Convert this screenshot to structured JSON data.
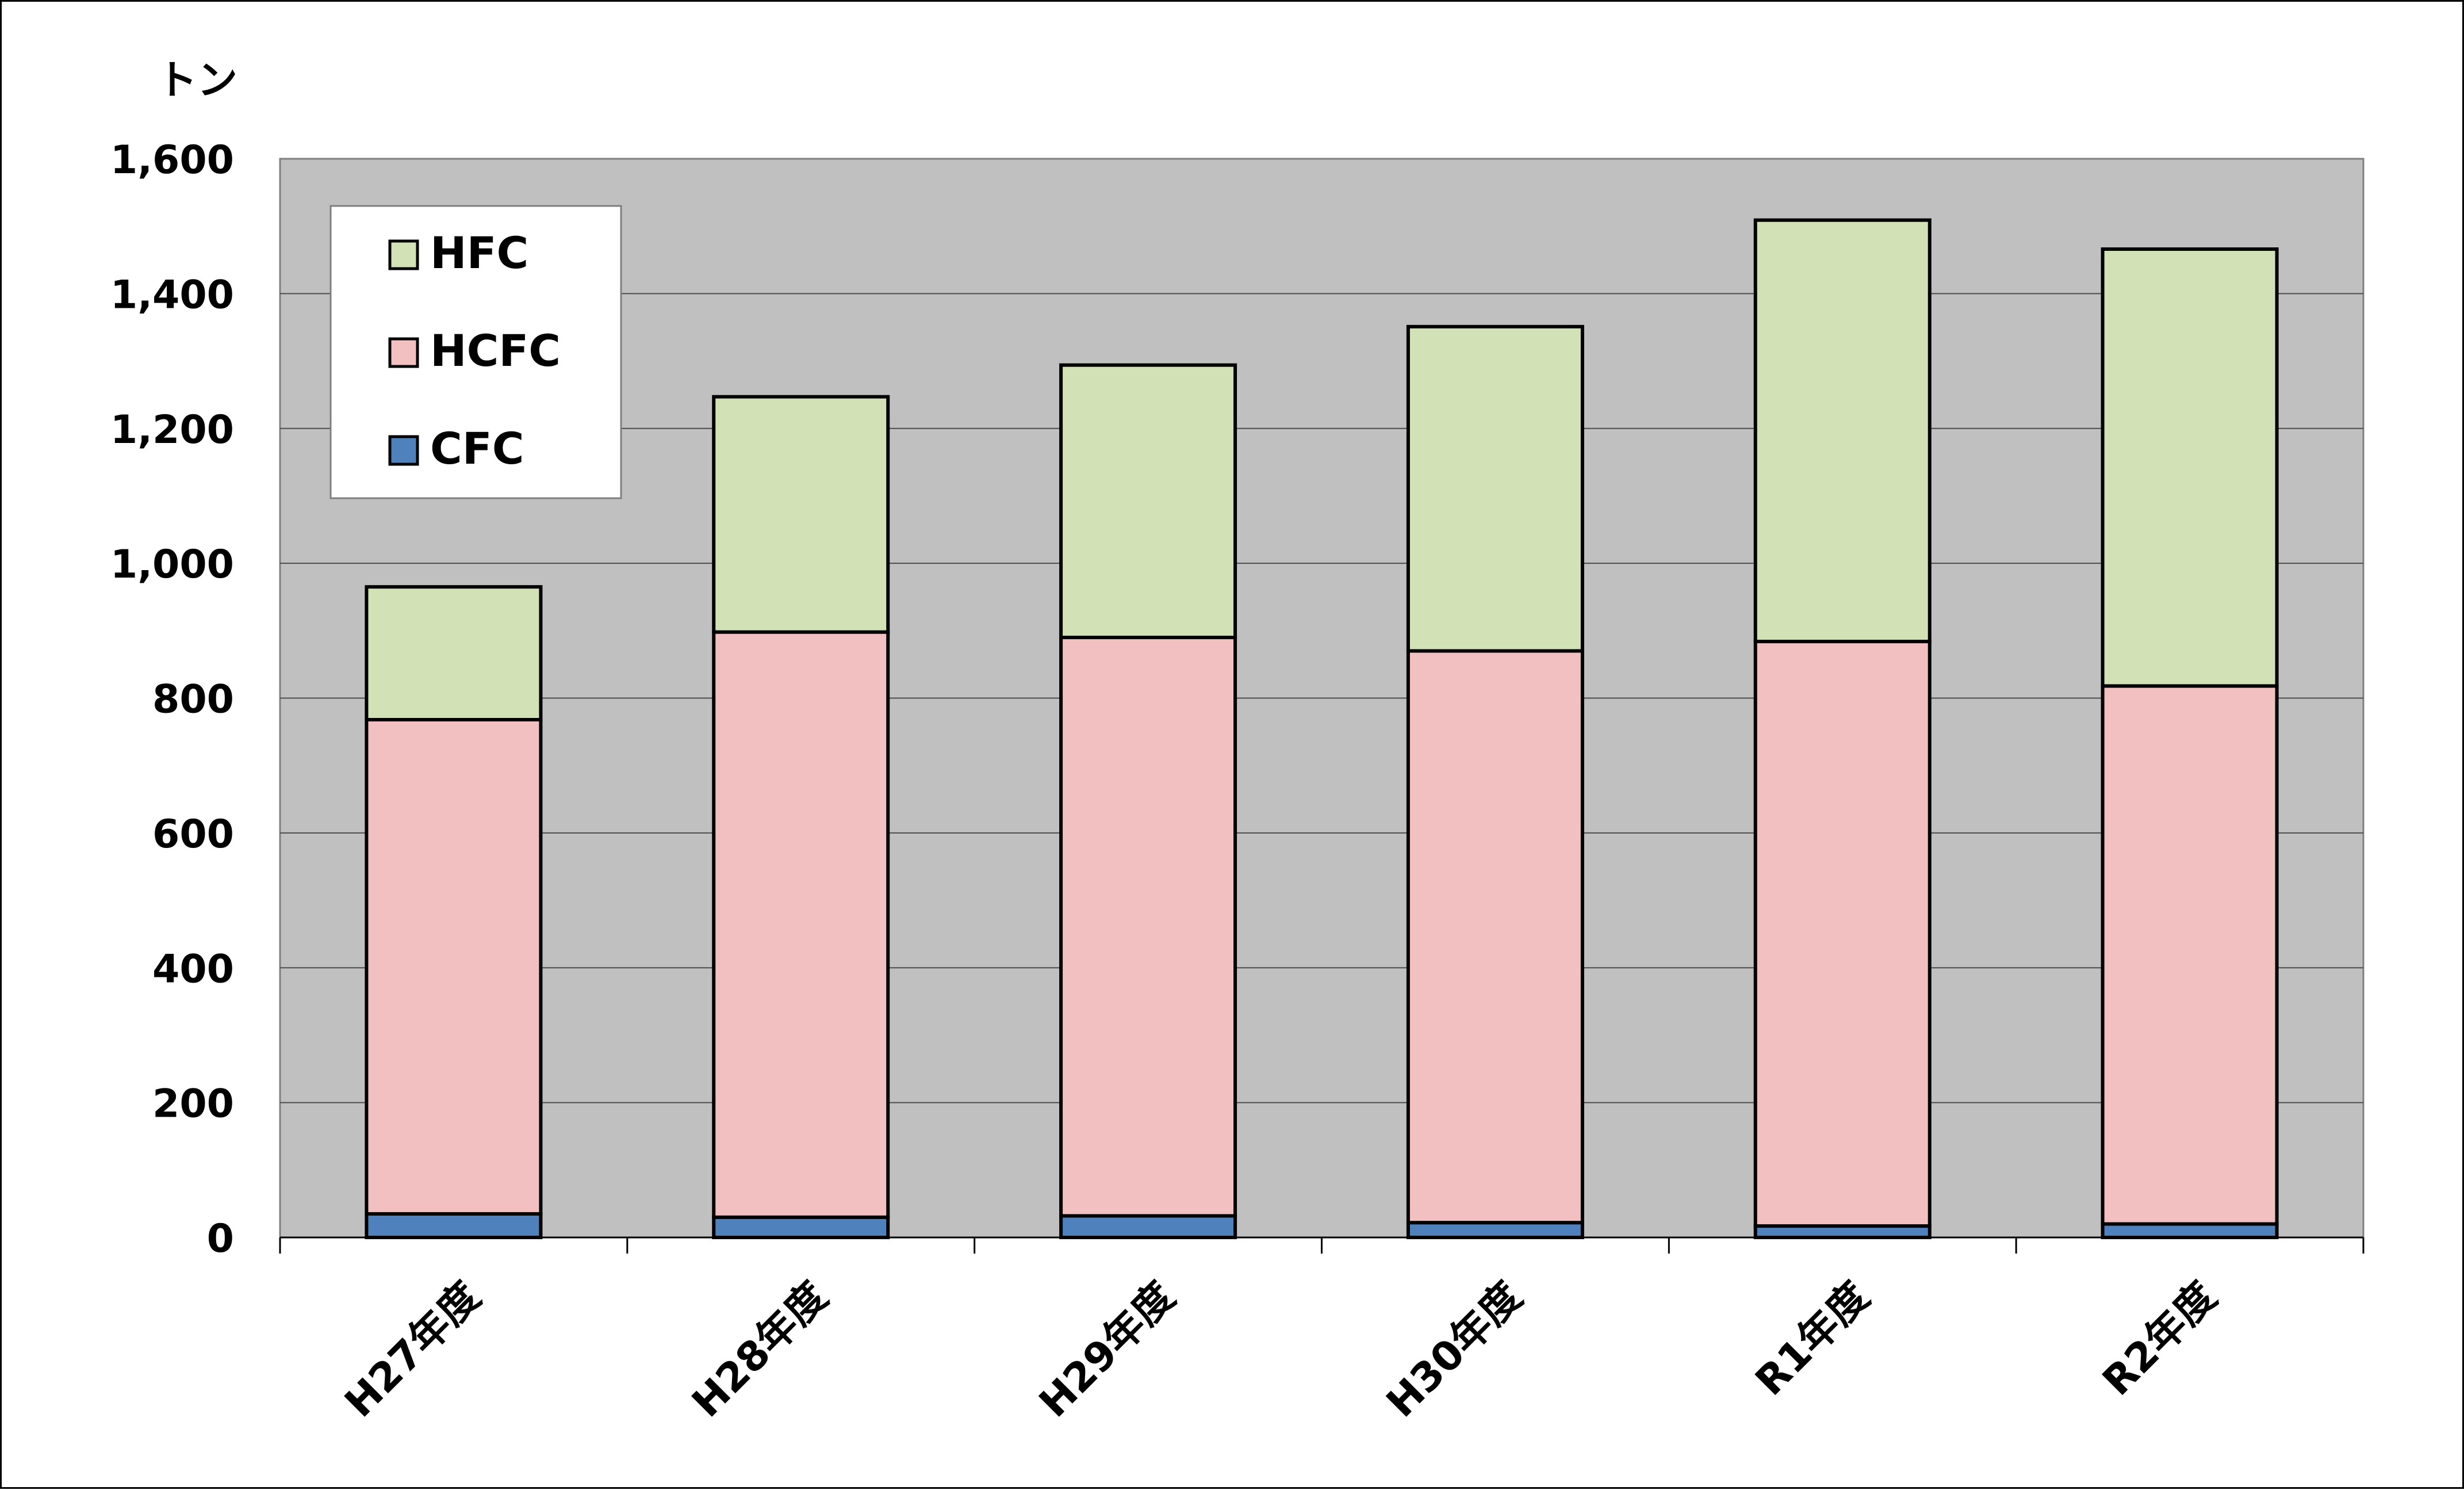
{
  "chart_data": {
    "type": "bar",
    "stacked": true,
    "title": "",
    "xlabel": "",
    "ylabel": "トン",
    "categories": [
      "H27年度",
      "H28年度",
      "H29年度",
      "H30年度",
      "R1年度",
      "R2年度"
    ],
    "series": [
      {
        "name": "CFC",
        "color": "#4f81bd",
        "values": [
          35,
          30,
          32,
          22,
          17,
          20
        ]
      },
      {
        "name": "HCFC",
        "color": "#f2c0c1",
        "values": [
          733,
          868,
          858,
          848,
          867,
          798
        ]
      },
      {
        "name": "HFC",
        "color": "#d3e2b6",
        "values": [
          197,
          349,
          404,
          481,
          625,
          648
        ]
      }
    ],
    "legend_order": [
      "HFC",
      "HCFC",
      "CFC"
    ],
    "legend_position": "top-left",
    "ylim": [
      0,
      1600
    ],
    "yticks": [
      0,
      200,
      400,
      600,
      800,
      1000,
      1200,
      1400,
      1600
    ],
    "ytick_labels": [
      "0",
      "200",
      "400",
      "600",
      "800",
      "1,000",
      "1,200",
      "1,400",
      "1,600"
    ],
    "grid": true,
    "plot_background": "#c0c0c0"
  }
}
